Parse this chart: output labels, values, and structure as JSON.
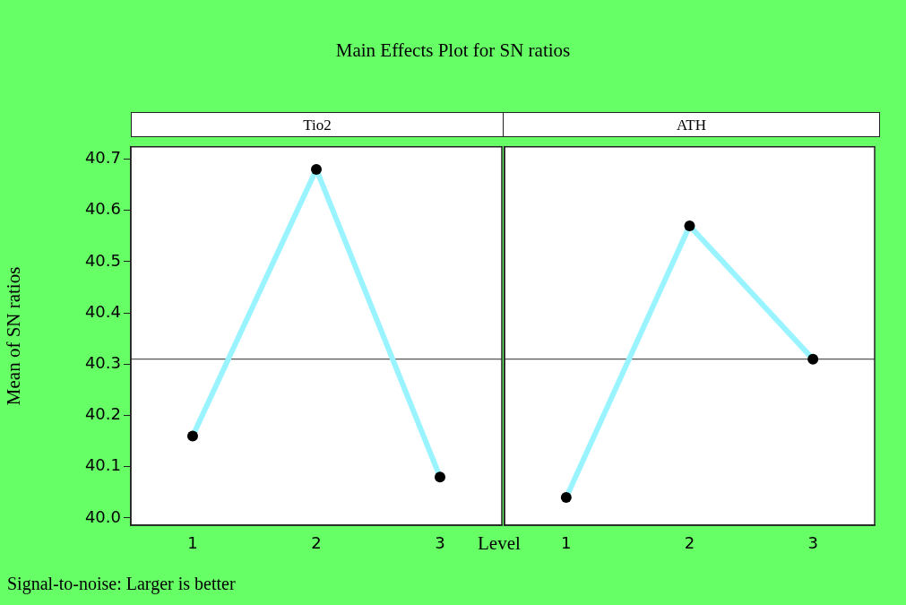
{
  "chart_data": [
    {
      "type": "line",
      "title": "Main Effects Plot for SN ratios",
      "subtitle": "Tio2",
      "xlabel": "Level",
      "ylabel": "Mean of SN ratios",
      "annotations": [
        "Signal-to-noise: Larger is better"
      ],
      "marker": "circle",
      "line_style": "solid",
      "x": [
        1,
        2,
        3
      ],
      "series": [
        {
          "color": "#99f4ff",
          "values": [
            40.16,
            40.68,
            40.08
          ]
        }
      ],
      "xlim": [
        0.5,
        3.5
      ],
      "xticks": [
        1,
        2,
        3
      ],
      "ylim": [
        39.986,
        40.724
      ],
      "yticks": [
        {
          "value": 40.0,
          "label": "40.0"
        },
        40.1,
        40.2,
        40.3,
        40.4,
        40.5,
        40.6,
        40.7
      ],
      "ref_lines": [
        {
          "axis": "y",
          "value": 40.31,
          "color": "#555555"
        }
      ]
    },
    {
      "type": "line",
      "subtitle": "ATH",
      "marker": "circle",
      "line_style": "solid",
      "tick_labels": "x",
      "x": [
        1,
        2,
        3
      ],
      "series": [
        {
          "color": "#99f4ff",
          "values": [
            40.04,
            40.57,
            40.31
          ]
        }
      ],
      "xlim": [
        0.5,
        3.5
      ],
      "xticks": [
        1,
        2,
        3
      ],
      "ylim": [
        39.986,
        40.724
      ],
      "yticks": [
        40,
        40.1,
        40.2,
        40.3,
        40.4,
        40.5,
        40.6,
        40.7
      ],
      "ref_lines": [
        {
          "axis": "y",
          "value": 40.31,
          "color": "#555555"
        }
      ]
    }
  ]
}
